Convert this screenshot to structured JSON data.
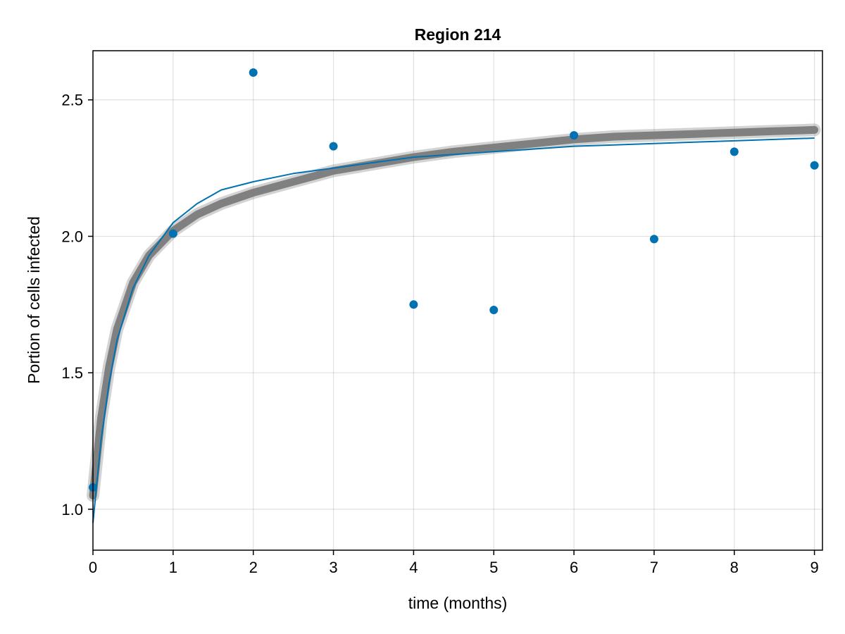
{
  "chart_data": {
    "type": "scatter",
    "title": "Region 214",
    "xlabel": "time (months)",
    "ylabel": "Portion of cells infected",
    "xlim": [
      0,
      9.1
    ],
    "ylim": [
      0.85,
      2.68
    ],
    "xticks": [
      0,
      1,
      2,
      3,
      4,
      5,
      6,
      7,
      8,
      9
    ],
    "yticks": [
      1.0,
      1.5,
      2.0,
      2.5
    ],
    "xtick_labels": [
      "0",
      "1",
      "2",
      "3",
      "4",
      "5",
      "6",
      "7",
      "8",
      "9"
    ],
    "ytick_labels": [
      "1.0",
      "1.5",
      "2.0",
      "2.5"
    ],
    "grid": true,
    "points": {
      "x": [
        0,
        1,
        2,
        3,
        4,
        5,
        6,
        7,
        8,
        9
      ],
      "y": [
        1.08,
        2.01,
        2.6,
        2.33,
        1.75,
        1.73,
        2.37,
        1.99,
        2.31,
        2.26
      ],
      "color": "#0072b2"
    },
    "fit_line": {
      "x": [
        0,
        0.1,
        0.2,
        0.3,
        0.5,
        0.7,
        1.0,
        1.3,
        1.6,
        2.0,
        2.5,
        3.0,
        3.5,
        4.0,
        4.5,
        5.0,
        5.5,
        6.0,
        6.5,
        7.0,
        7.5,
        8.0,
        8.5,
        9.0
      ],
      "y": [
        0.95,
        1.25,
        1.46,
        1.62,
        1.81,
        1.93,
        2.05,
        2.12,
        2.17,
        2.2,
        2.23,
        2.25,
        2.27,
        2.29,
        2.3,
        2.31,
        2.32,
        2.33,
        2.335,
        2.34,
        2.345,
        2.35,
        2.355,
        2.36
      ],
      "color": "#0072b2"
    },
    "ensemble_band": {
      "x": [
        0,
        0.1,
        0.2,
        0.3,
        0.5,
        0.7,
        1.0,
        1.3,
        1.6,
        2.0,
        2.5,
        3.0,
        3.5,
        4.0,
        4.5,
        5.0,
        5.5,
        6.0,
        6.5,
        7.0,
        7.5,
        8.0,
        8.5,
        9.0
      ],
      "y": [
        1.05,
        1.33,
        1.52,
        1.66,
        1.83,
        1.93,
        2.02,
        2.08,
        2.12,
        2.16,
        2.2,
        2.24,
        2.265,
        2.29,
        2.31,
        2.325,
        2.34,
        2.355,
        2.365,
        2.37,
        2.375,
        2.38,
        2.385,
        2.39
      ],
      "color": "#808080"
    }
  }
}
